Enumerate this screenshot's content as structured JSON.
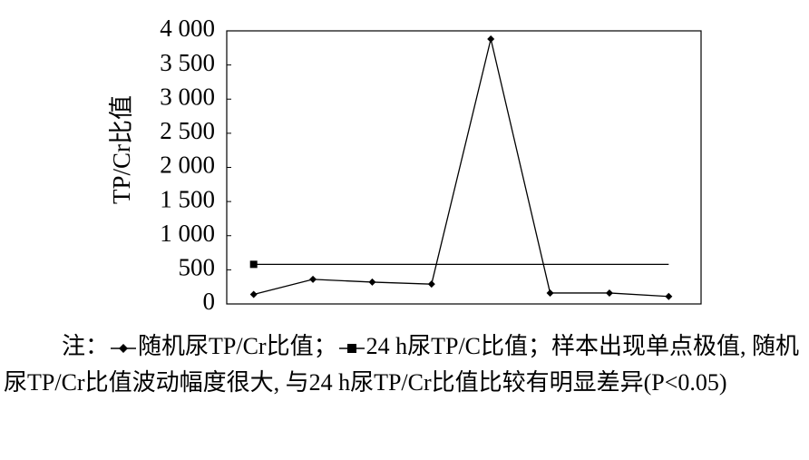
{
  "chart_data": {
    "type": "line",
    "y_label": "TP/Cr比值",
    "categories": [
      null,
      null,
      null,
      null,
      null,
      null,
      null,
      null
    ],
    "series": [
      {
        "name": "随机尿TP/Cr比值",
        "color": "#000000",
        "marker": "diamond",
        "values": [
          140,
          360,
          320,
          290,
          3880,
          160,
          160,
          110
        ]
      },
      {
        "name": "24 h尿TP/C比值",
        "color": "#000000",
        "marker": "square",
        "values": [
          580,
          580,
          580,
          580,
          580,
          580,
          580,
          580
        ]
      }
    ],
    "ylim": [
      0,
      4000
    ],
    "yticks": [
      0,
      500,
      {
        "value": 1000,
        "label": "1 000"
      },
      {
        "value": 1500,
        "label": "1 500"
      },
      {
        "value": 2000,
        "label": "2 000"
      },
      {
        "value": 2500,
        "label": "2 500"
      },
      {
        "value": 3000,
        "label": "3 000"
      },
      {
        "value": 3500,
        "label": "3 500"
      },
      {
        "value": 4000,
        "label": "4 000"
      }
    ],
    "note_prefix": "注：",
    "note_separator": "；",
    "note_text": "样本出现单点极值, 随机尿TP/Cr比值波动幅度很大, 与24 h尿TP/Cr比值比较有明显差异(P<0.05)"
  }
}
